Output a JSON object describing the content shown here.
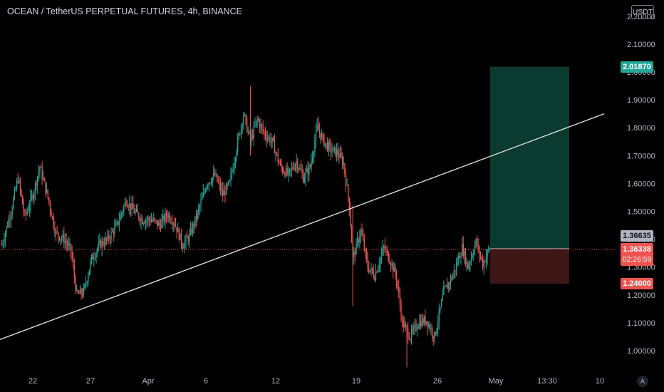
{
  "header": {
    "title": "OCEAN / TetherUS PERPETUAL FUTURES, 4h, BINANCE",
    "currency": "USDT"
  },
  "colors": {
    "up": "#26a69a",
    "down": "#ef5350",
    "background": "#000000",
    "target_zone": "#0a3a30",
    "stop_zone": "#3d1616",
    "trendline": "#e6e6e6"
  },
  "price_axis": {
    "ticks": [
      "2.20000",
      "2.10000",
      "2.00000",
      "1.90000",
      "1.80000",
      "1.70000",
      "1.60000",
      "1.50000",
      "1.40000",
      "1.30000",
      "1.20000",
      "1.10000",
      "1.00000"
    ],
    "target_label": "2.01870",
    "entry_label": "1.36635",
    "current_label": "1.36338",
    "countdown": "02:26:59",
    "stop_label": "1.24000"
  },
  "time_axis": {
    "labels": [
      "22",
      "27",
      "Apr",
      "6",
      "12",
      "19",
      "26",
      "May",
      "13:30",
      "10"
    ]
  },
  "auto_scale_label": "A",
  "chart_data": {
    "type": "candlestick",
    "title": "OCEAN / TetherUS PERPETUAL FUTURES, 4h, BINANCE",
    "x_axis_ticks": [
      "22",
      "27",
      "Apr",
      "6",
      "12",
      "19",
      "26",
      "May",
      "13:30",
      "10"
    ],
    "y_axis_ticks": [
      2.2,
      2.1,
      2.0,
      1.9,
      1.8,
      1.7,
      1.6,
      1.5,
      1.4,
      1.3,
      1.2,
      1.1,
      1.0
    ],
    "ylim": [
      0.93,
      2.25
    ],
    "grid": false,
    "path_description": "approximate close path used to draw candles (x = period index, y = price)",
    "path": [
      [
        0,
        1.38
      ],
      [
        8,
        1.5
      ],
      [
        14,
        1.62
      ],
      [
        20,
        1.48
      ],
      [
        27,
        1.56
      ],
      [
        33,
        1.66
      ],
      [
        40,
        1.55
      ],
      [
        47,
        1.42
      ],
      [
        54,
        1.4
      ],
      [
        60,
        1.36
      ],
      [
        65,
        1.2
      ],
      [
        71,
        1.21
      ],
      [
        78,
        1.33
      ],
      [
        85,
        1.38
      ],
      [
        92,
        1.4
      ],
      [
        100,
        1.45
      ],
      [
        108,
        1.54
      ],
      [
        115,
        1.5
      ],
      [
        122,
        1.47
      ],
      [
        130,
        1.47
      ],
      [
        137,
        1.45
      ],
      [
        144,
        1.49
      ],
      [
        150,
        1.46
      ],
      [
        157,
        1.38
      ],
      [
        163,
        1.41
      ],
      [
        170,
        1.49
      ],
      [
        178,
        1.6
      ],
      [
        185,
        1.63
      ],
      [
        192,
        1.56
      ],
      [
        198,
        1.6
      ],
      [
        205,
        1.75
      ],
      [
        210,
        1.85
      ],
      [
        216,
        1.75
      ],
      [
        222,
        1.83
      ],
      [
        228,
        1.78
      ],
      [
        235,
        1.75
      ],
      [
        242,
        1.66
      ],
      [
        249,
        1.63
      ],
      [
        256,
        1.68
      ],
      [
        262,
        1.62
      ],
      [
        268,
        1.66
      ],
      [
        274,
        1.8
      ],
      [
        280,
        1.75
      ],
      [
        286,
        1.72
      ],
      [
        292,
        1.71
      ],
      [
        297,
        1.67
      ],
      [
        302,
        1.52
      ],
      [
        305,
        1.33
      ],
      [
        312,
        1.43
      ],
      [
        318,
        1.3
      ],
      [
        324,
        1.27
      ],
      [
        332,
        1.37
      ],
      [
        338,
        1.32
      ],
      [
        343,
        1.26
      ],
      [
        348,
        1.1
      ],
      [
        355,
        1.05
      ],
      [
        362,
        1.1
      ],
      [
        369,
        1.11
      ],
      [
        376,
        1.05
      ],
      [
        384,
        1.21
      ],
      [
        392,
        1.27
      ],
      [
        400,
        1.37
      ],
      [
        405,
        1.3
      ],
      [
        412,
        1.39
      ],
      [
        418,
        1.31
      ],
      [
        424,
        1.37
      ]
    ],
    "trendline": {
      "x1": 0,
      "y1": 1.04,
      "x2": 515,
      "y2": 1.85
    },
    "long_position": {
      "entry": 1.36635,
      "target": 2.0187,
      "stop": 1.24
    },
    "current_price": 1.36338
  }
}
